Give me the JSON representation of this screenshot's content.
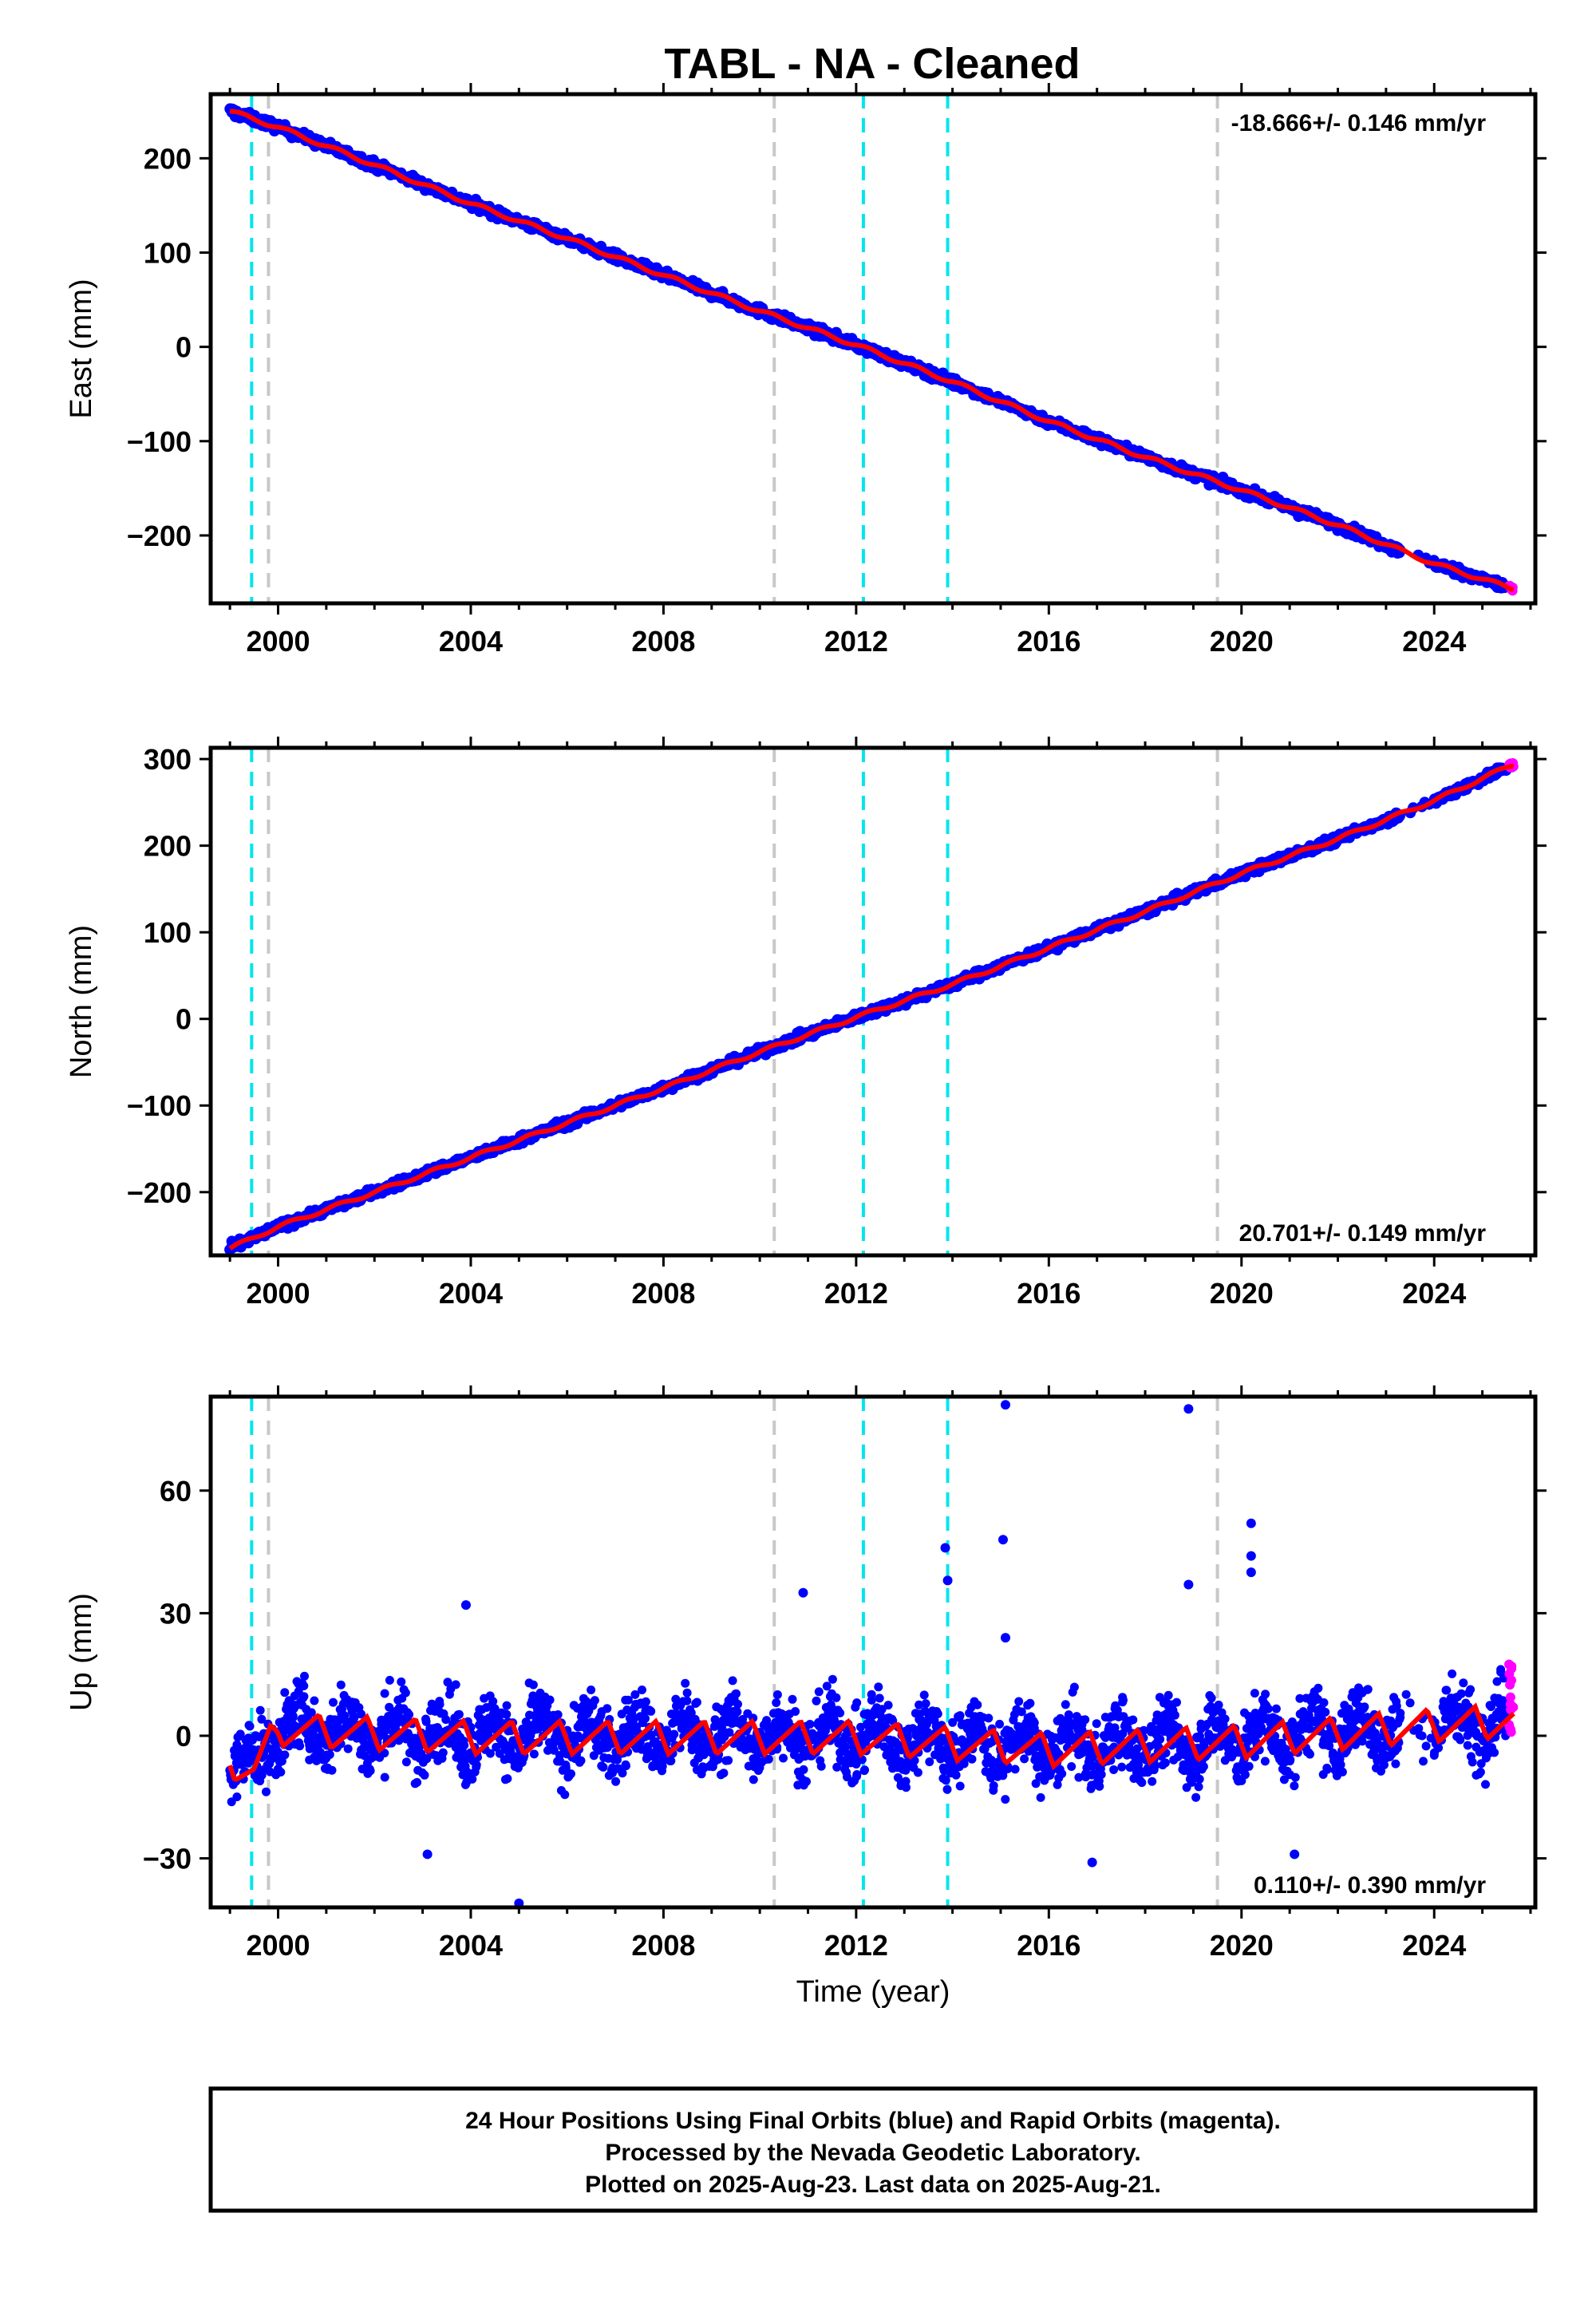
{
  "title": "TABL  - NA - Cleaned",
  "footer": {
    "line1": "24 Hour Positions Using Final Orbits (blue) and Rapid Orbits (magenta).",
    "line2": "Processed by the Nevada Geodetic Laboratory.",
    "line3": "Plotted on 2025-Aug-23. Last data on 2025-Aug-21."
  },
  "colors": {
    "final_orbits": "#0000ff",
    "rapid_orbits": "#ff00ff",
    "model": "#ff0000",
    "event_cyan": "#00e5ee",
    "event_gray": "#c8c8c8"
  },
  "events": {
    "cyan": [
      1999.45,
      2012.15,
      2013.9
    ],
    "gray": [
      1999.8,
      2010.3,
      2019.5
    ]
  },
  "chart_data": [
    {
      "type": "scatter",
      "ylabel": "East (mm)",
      "xlim": [
        1998.6,
        2026.1
      ],
      "ylim": [
        -272,
        268
      ],
      "x_ticks": [
        "2000",
        "2004",
        "2008",
        "2012",
        "2016",
        "2020",
        "2024"
      ],
      "y_ticks": [
        200,
        100,
        0,
        -100,
        -200
      ],
      "rate_label": "-18.666+/- 0.146 mm/yr",
      "rate_position": "top-right",
      "series": [
        {
          "x": [
            1999.0,
            2000.0,
            2002.0,
            2004.0,
            2006.0,
            2008.0,
            2010.0,
            2012.0,
            2014.0,
            2016.0,
            2018.0,
            2020.0,
            2022.0,
            2024.0,
            2025.6
          ],
          "values": [
            250,
            233,
            193,
            152,
            115,
            76,
            38,
            2,
            -37,
            -79,
            -117,
            -152,
            -189,
            -230,
            -256
          ]
        }
      ]
    },
    {
      "type": "scatter",
      "ylabel": "North (mm)",
      "xlim": [
        1998.6,
        2026.1
      ],
      "ylim": [
        -273,
        313
      ],
      "x_ticks": [
        "2000",
        "2004",
        "2008",
        "2012",
        "2016",
        "2020",
        "2024"
      ],
      "y_ticks": [
        300,
        200,
        100,
        0,
        -100,
        -200
      ],
      "rate_label": "20.701+/- 0.149 mm/yr",
      "rate_position": "bottom-right",
      "series": [
        {
          "x": [
            1999.0,
            2000.0,
            2002.0,
            2004.0,
            2006.0,
            2008.0,
            2010.0,
            2012.0,
            2014.0,
            2016.0,
            2018.0,
            2020.0,
            2022.0,
            2024.0,
            2025.6
          ],
          "values": [
            -265,
            -240,
            -200,
            -160,
            -120,
            -80,
            -38,
            2,
            40,
            82,
            124,
            168,
            208,
            252,
            293
          ]
        }
      ]
    },
    {
      "type": "scatter",
      "ylabel": "Up (mm)",
      "xlabel": "Time (year)",
      "xlim": [
        1998.6,
        2026.1
      ],
      "ylim": [
        -42,
        83
      ],
      "x_ticks": [
        "2000",
        "2004",
        "2008",
        "2012",
        "2016",
        "2020",
        "2024"
      ],
      "y_ticks": [
        60,
        30,
        0,
        -30
      ],
      "rate_label": "0.110+/- 0.390 mm/yr",
      "rate_position": "bottom-right",
      "outliers": [
        {
          "x": 2003.9,
          "y": 32
        },
        {
          "x": 2005.0,
          "y": -41
        },
        {
          "x": 2010.9,
          "y": 35
        },
        {
          "x": 2013.85,
          "y": 46
        },
        {
          "x": 2013.9,
          "y": 38
        },
        {
          "x": 2015.1,
          "y": 81
        },
        {
          "x": 2015.05,
          "y": 48
        },
        {
          "x": 2015.1,
          "y": 24
        },
        {
          "x": 2018.9,
          "y": 80
        },
        {
          "x": 2018.9,
          "y": 37
        },
        {
          "x": 2020.2,
          "y": 52
        },
        {
          "x": 2020.2,
          "y": 44
        },
        {
          "x": 2020.2,
          "y": 40
        },
        {
          "x": 2021.1,
          "y": -29
        },
        {
          "x": 2016.9,
          "y": -31
        },
        {
          "x": 2003.1,
          "y": -29
        }
      ],
      "series": [
        {
          "x": [
            1999.0,
            1999.5,
            2000.0,
            2004.0,
            2008.0,
            2012.0,
            2016.0,
            2020.0,
            2024.0,
            2025.6
          ],
          "values": [
            -6,
            -8,
            2,
            0,
            0,
            0,
            -3,
            -1,
            3,
            4
          ]
        }
      ]
    }
  ]
}
